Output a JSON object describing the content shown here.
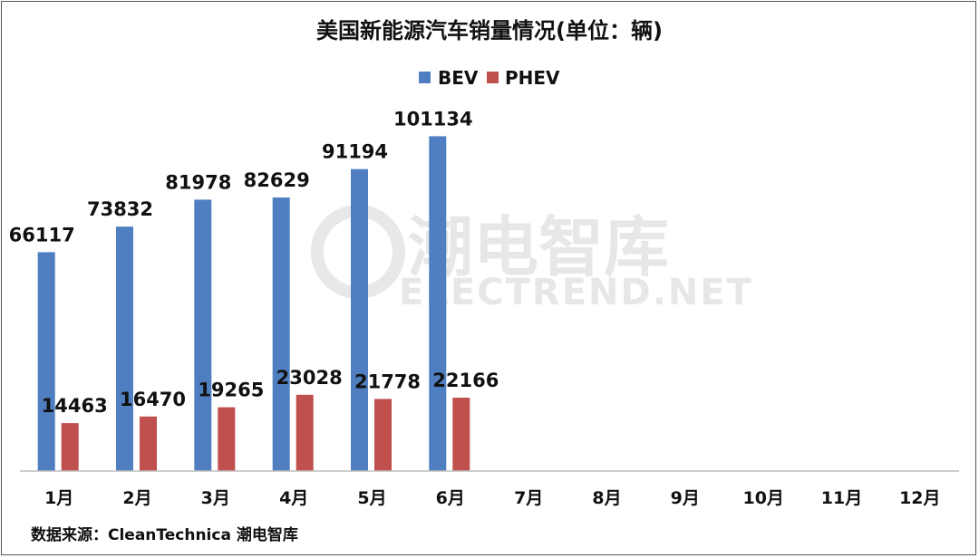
{
  "chart_data": {
    "type": "bar",
    "title": "美国新能源汽车销量情况(单位：辆)",
    "categories": [
      "1月",
      "2月",
      "3月",
      "4月",
      "5月",
      "6月",
      "7月",
      "8月",
      "9月",
      "10月",
      "11月",
      "12月"
    ],
    "series": [
      {
        "name": "BEV",
        "color": "#4F7FC0",
        "values": [
          66117,
          73832,
          81978,
          82629,
          91194,
          101134,
          null,
          null,
          null,
          null,
          null,
          null
        ]
      },
      {
        "name": "PHEV",
        "color": "#C0504D",
        "values": [
          14463,
          16470,
          19265,
          23028,
          21778,
          22166,
          null,
          null,
          null,
          null,
          null,
          null
        ]
      }
    ],
    "ylim": [
      0,
      110000
    ],
    "grid": false,
    "legend_position": "top-center",
    "data_labels": true
  },
  "source": "数据来源：CleanTechnica  潮电智库",
  "watermark": {
    "main": "潮电智库",
    "sub": "ELECTREND.NET"
  }
}
